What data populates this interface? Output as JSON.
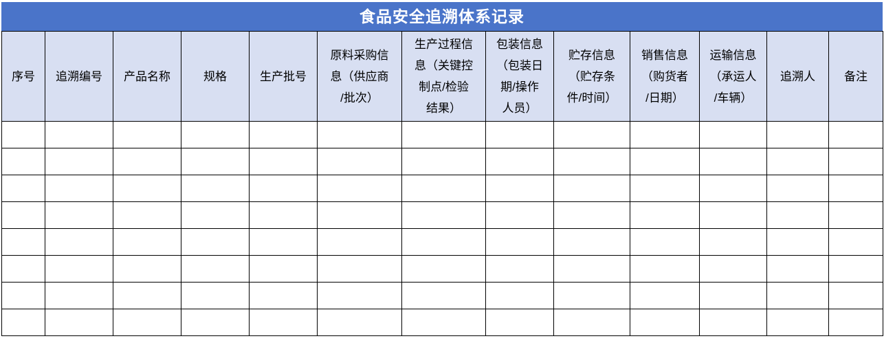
{
  "title": "食品安全追溯体系记录",
  "colors": {
    "title_bg": "#4A74C9",
    "title_text": "#FFFFFF",
    "header_bg": "#D8DFF2",
    "border": "#000000"
  },
  "table": {
    "headers": [
      "序号",
      "追溯编号",
      "产品名称",
      "规格",
      "生产批号",
      "原料采购信\n息（供应商\n/批次）",
      "生产过程信\n息（关键控\n制点/检验\n结果）",
      "包装信息\n（包装日\n期/操作\n人员）",
      "贮存信息\n（贮存条\n件/时间）",
      "销售信息\n（购货者\n/日期）",
      "运输信息\n（承运人\n/车辆）",
      "追溯人",
      "备注"
    ],
    "empty_row_count": 8,
    "cell_values": []
  }
}
